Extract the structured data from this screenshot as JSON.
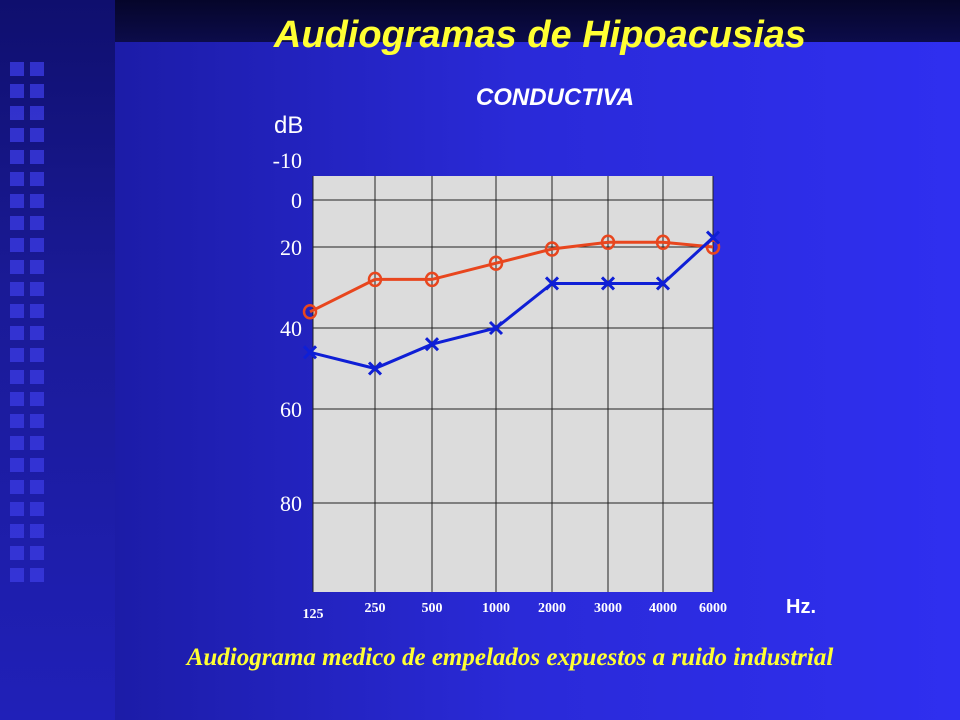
{
  "title": "Audiogramas de Hipoacusias",
  "subtitle": "CONDUCTIVA",
  "caption": "Audiograma medico de empelados expuestos a ruido industrial",
  "colors": {
    "title": "#ffff33",
    "series_o": "#e8461e",
    "series_x": "#0f1fd6",
    "plot_bg": "#dcdcdc"
  },
  "chart_data": {
    "type": "line",
    "ylabel": "dB",
    "xlabel": "Hz.",
    "y_ticks": [
      -10,
      0,
      20,
      40,
      60,
      80
    ],
    "y_reversed": true,
    "ylim": [
      -10,
      97
    ],
    "categories": [
      "125",
      "250",
      "500",
      "1000",
      "2000",
      "3000",
      "4000",
      "6000"
    ],
    "grid": true,
    "series": [
      {
        "marker": "O",
        "values": [
          36,
          28,
          28,
          24,
          20.5,
          18,
          18,
          20
        ]
      },
      {
        "marker": "X",
        "values": [
          46,
          50,
          44,
          40,
          29,
          29,
          29,
          16
        ]
      }
    ]
  }
}
